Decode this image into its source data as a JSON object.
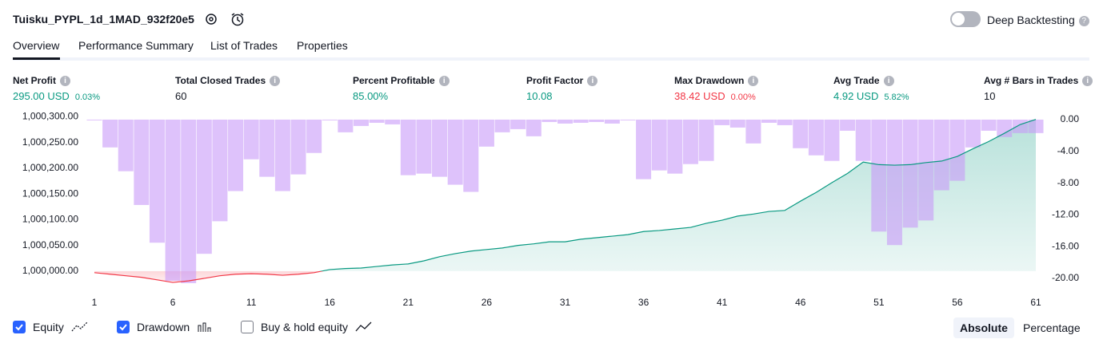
{
  "header": {
    "title": "Tuisku_PYPL_1d_1MAD_932f20e5",
    "deep_backtesting": "Deep Backtesting"
  },
  "tabs": [
    "Overview",
    "Performance Summary",
    "List of Trades",
    "Properties"
  ],
  "metrics": [
    {
      "label": "Net Profit",
      "value": "295.00 USD",
      "sub": "0.03%",
      "color": "#089981"
    },
    {
      "label": "Total Closed Trades",
      "value": "60",
      "color": "#131722"
    },
    {
      "label": "Percent Profitable",
      "value": "85.00%",
      "color": "#089981"
    },
    {
      "label": "Profit Factor",
      "value": "10.08",
      "color": "#089981"
    },
    {
      "label": "Max Drawdown",
      "value": "38.42 USD",
      "sub": "0.00%",
      "color": "#f23645"
    },
    {
      "label": "Avg Trade",
      "value": "4.92 USD",
      "sub": "5.82%",
      "color": "#089981"
    },
    {
      "label": "Avg # Bars in Trades",
      "value": "10",
      "color": "#131722"
    }
  ],
  "chart_data": {
    "type": "equity-drawdown",
    "x": [
      1,
      2,
      3,
      4,
      5,
      6,
      7,
      8,
      9,
      10,
      11,
      12,
      13,
      14,
      15,
      16,
      17,
      18,
      19,
      20,
      21,
      22,
      23,
      24,
      25,
      26,
      27,
      28,
      29,
      30,
      31,
      32,
      33,
      34,
      35,
      36,
      37,
      38,
      39,
      40,
      41,
      42,
      43,
      44,
      45,
      46,
      47,
      48,
      49,
      50,
      51,
      52,
      53,
      54,
      55,
      56,
      57,
      58,
      59,
      60,
      61
    ],
    "xlim": [
      1,
      61
    ],
    "xticks": [
      1,
      6,
      11,
      16,
      21,
      26,
      31,
      36,
      41,
      46,
      51,
      56,
      61
    ],
    "ylim": [
      999975,
      1000310
    ],
    "yticks": [
      {
        "value": 1000000,
        "label": "1,000,000.00"
      },
      {
        "value": 1000050,
        "label": "1,000,050.00"
      },
      {
        "value": 1000100,
        "label": "1,000,100.00"
      },
      {
        "value": 1000150,
        "label": "1,000,150.00"
      },
      {
        "value": 1000200,
        "label": "1,000,200.00"
      },
      {
        "value": 1000250,
        "label": "1,000,250.00"
      },
      {
        "value": 1000300,
        "label": "1,000,300.00"
      }
    ],
    "y2lim": [
      -20.7,
      1.0
    ],
    "y2ticks": [
      {
        "value": 0,
        "label": "0.00"
      },
      {
        "value": -4,
        "label": "-4.00"
      },
      {
        "value": -8,
        "label": "-8.00"
      },
      {
        "value": -12,
        "label": "-12.00"
      },
      {
        "value": -16,
        "label": "-16.00"
      },
      {
        "value": -20,
        "label": "-20.00"
      }
    ],
    "series": [
      {
        "name": "Equity",
        "color": "#089981",
        "below_color": "#f23645",
        "visible": true,
        "values": [
          999997,
          999994,
          999991,
          999988,
          999983,
          999978,
          999981,
          999986,
          999991,
          999994,
          999995,
          999994,
          999992,
          999994,
          999997,
          1000003,
          1000005,
          1000006,
          1000009,
          1000012,
          1000014,
          1000020,
          1000028,
          1000034,
          1000039,
          1000042,
          1000045,
          1000050,
          1000053,
          1000057,
          1000057,
          1000062,
          1000065,
          1000068,
          1000071,
          1000077,
          1000079,
          1000082,
          1000085,
          1000093,
          1000099,
          1000107,
          1000111,
          1000116,
          1000118,
          1000136,
          1000153,
          1000172,
          1000190,
          1000212,
          1000207,
          1000206,
          1000207,
          1000211,
          1000214,
          1000223,
          1000238,
          1000252,
          1000268,
          1000285,
          1000295
        ]
      },
      {
        "name": "Drawdown",
        "color": "#c89af8",
        "axis": "y2",
        "visible": true,
        "values": [
          -0.1,
          -3.5,
          -6.5,
          -10.75,
          -15.5,
          -20.3,
          -20.6,
          -16.9,
          -12.8,
          -9.0,
          -5.0,
          -7.2,
          -9.0,
          -6.9,
          -4.2,
          -0.1,
          -1.6,
          -0.8,
          -0.4,
          -0.6,
          -7.0,
          -6.8,
          -7.2,
          -8.2,
          -9.1,
          -3.4,
          -1.6,
          -1.2,
          -2.1,
          -0.3,
          -0.5,
          -0.4,
          -0.3,
          -0.5,
          -0.1,
          -7.5,
          -6.4,
          -6.8,
          -5.6,
          -5.2,
          -0.7,
          -1.0,
          -3.0,
          -0.4,
          -0.7,
          -3.6,
          -4.5,
          -5.2,
          -1.4,
          -5.2,
          -14.1,
          -15.8,
          -13.6,
          -12.7,
          -8.9,
          -7.7,
          -3.5,
          -1.4,
          -2.2,
          -1.7,
          -1.7
        ]
      }
    ],
    "buy_and_hold": {
      "name": "Buy & hold equity",
      "visible": false
    }
  },
  "view_modes": [
    "Absolute",
    "Percentage"
  ]
}
